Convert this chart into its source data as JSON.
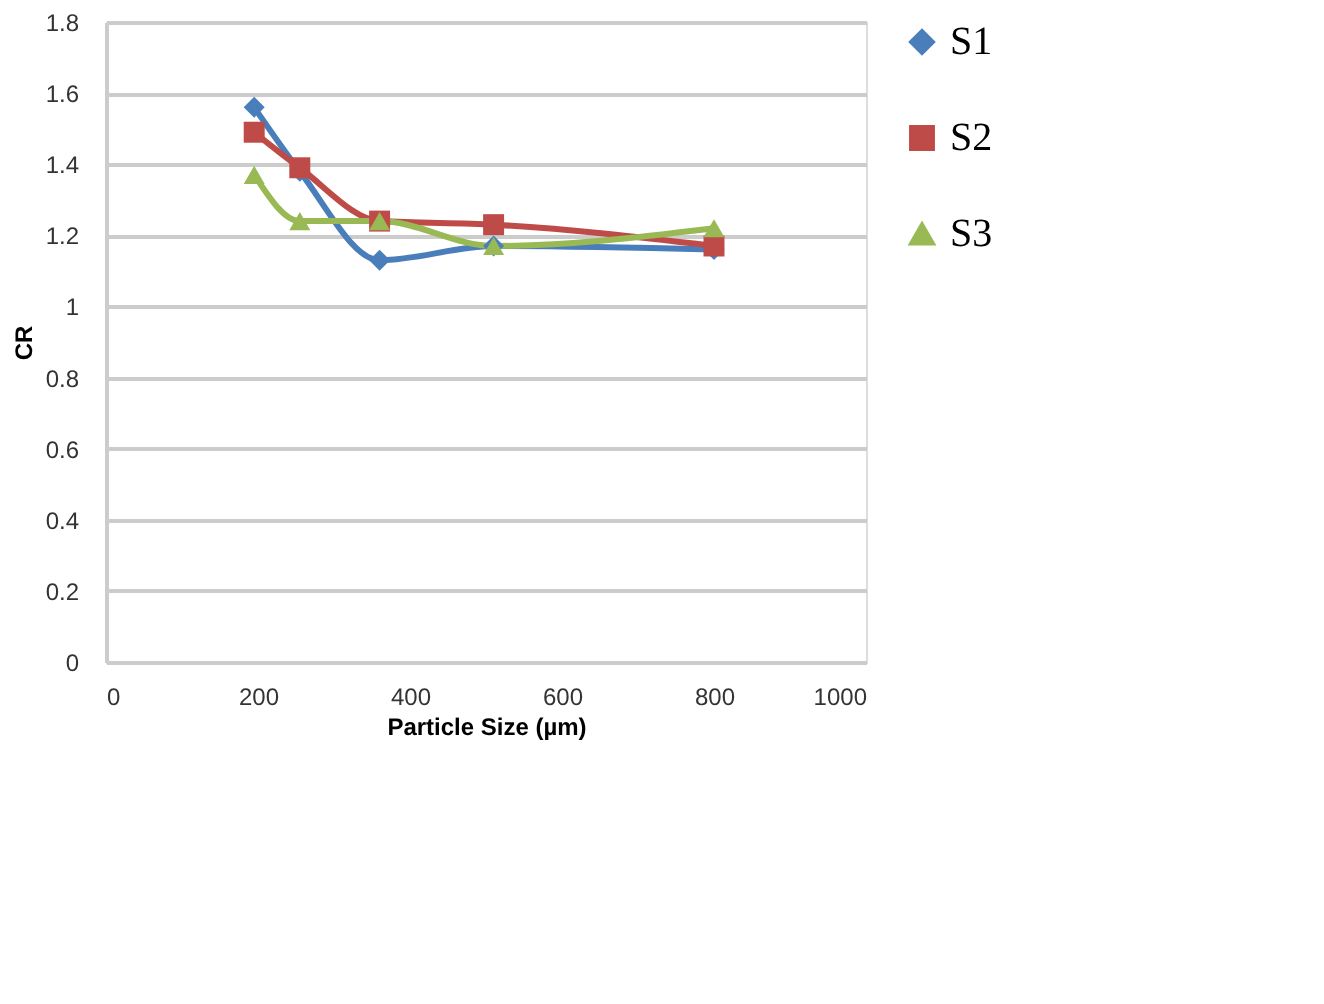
{
  "chart_data": {
    "type": "line",
    "xlabel": "Particle Size (µm)",
    "ylabel": "CR",
    "x": [
      195,
      255,
      360,
      510,
      800
    ],
    "series": [
      {
        "name": "S1",
        "color": "#4a7ebb",
        "marker": "diamond",
        "values": [
          1.56,
          1.38,
          1.13,
          1.17,
          1.16
        ]
      },
      {
        "name": "S2",
        "color": "#be4b48",
        "marker": "square",
        "values": [
          1.49,
          1.39,
          1.24,
          1.23,
          1.17
        ]
      },
      {
        "name": "S3",
        "color": "#98b954",
        "marker": "triangle",
        "values": [
          1.37,
          1.24,
          1.24,
          1.17,
          1.22
        ]
      }
    ],
    "xlim": [
      0,
      1000
    ],
    "xticks": [
      0,
      200,
      400,
      600,
      800,
      1000
    ],
    "ylim": [
      0,
      1.8
    ],
    "yticks": [
      0,
      0.2,
      0.4,
      0.6,
      0.8,
      1,
      1.2,
      1.4,
      1.6,
      1.8
    ],
    "grid": "y",
    "legend": "right"
  }
}
